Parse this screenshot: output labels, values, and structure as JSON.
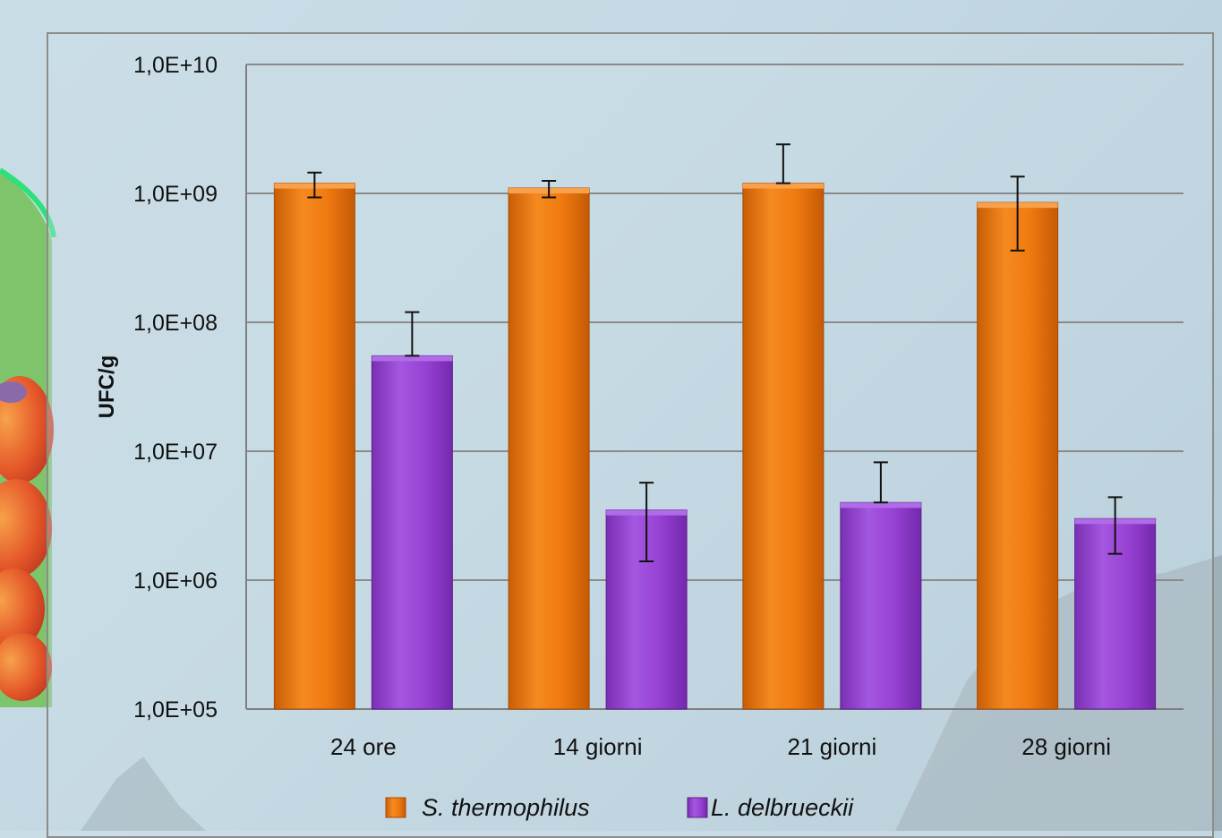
{
  "chart_data": {
    "type": "bar",
    "title": "",
    "xlabel": "",
    "ylabel": "UFC/g",
    "yscale": "log",
    "ylim": [
      100000,
      10000000000
    ],
    "yticks": [
      "1,0E+05",
      "1,0E+06",
      "1,0E+07",
      "1,0E+08",
      "1,0E+09",
      "1,0E+10"
    ],
    "grid": true,
    "legend_position": "bottom",
    "categories": [
      "24 ore",
      "14 giorni",
      "21 giorni",
      "28 giorni"
    ],
    "series": [
      {
        "name": "S. thermophilus",
        "color": "#f07a10",
        "values": [
          1200000000,
          1100000000,
          1200000000,
          850000000
        ],
        "error_low": [
          930000000,
          930000000,
          1200000000,
          360000000
        ],
        "error_high": [
          1450000000,
          1250000000,
          2400000000,
          1350000000
        ]
      },
      {
        "name": "L. delbrueckii",
        "color": "#9842d4",
        "values": [
          55000000,
          3500000,
          4000000,
          3000000
        ],
        "error_low": [
          55000000,
          1400000,
          4000000,
          1600000
        ],
        "error_high": [
          120000000,
          5700000,
          8200000,
          4400000
        ]
      }
    ]
  },
  "decor": {
    "icons": [
      "bacteria-image",
      "mountain-silhouette"
    ]
  }
}
